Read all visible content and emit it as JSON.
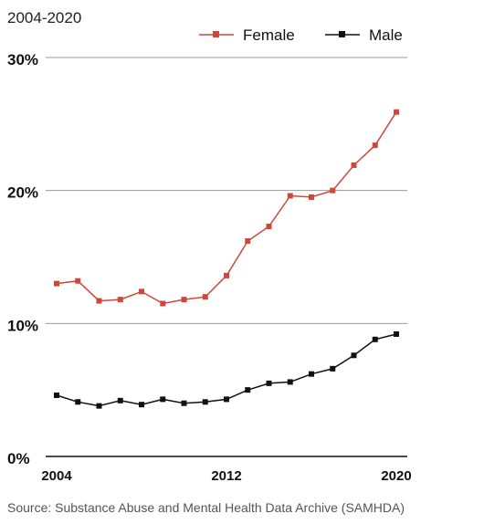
{
  "subtitle": "2004-2020",
  "source": "Source: Substance Abuse and Mental Health Data Archive (SAMHDA)",
  "colors": {
    "female": "#d0463b",
    "male": "#111111"
  },
  "chart_data": {
    "type": "line",
    "title": "",
    "subtitle": "2004-2020",
    "xlabel": "",
    "ylabel": "",
    "x": [
      2004,
      2005,
      2006,
      2007,
      2008,
      2009,
      2010,
      2011,
      2012,
      2013,
      2014,
      2015,
      2016,
      2017,
      2018,
      2019,
      2020
    ],
    "x_ticks": [
      2004,
      2012,
      2020
    ],
    "x_tick_labels": [
      "2004",
      "2012",
      "2020"
    ],
    "xlim": [
      2004,
      2020
    ],
    "ylim": [
      0,
      30
    ],
    "y_ticks": [
      0,
      10,
      20,
      30
    ],
    "y_tick_labels": [
      "0%",
      "10%",
      "20%",
      "30%"
    ],
    "grid": true,
    "legend": "top-right",
    "series": [
      {
        "name": "Female",
        "color": "#d0463b",
        "marker": "square",
        "values": [
          13.0,
          13.2,
          11.7,
          11.8,
          12.4,
          11.5,
          11.8,
          12.0,
          13.6,
          16.2,
          17.3,
          19.6,
          19.5,
          20.0,
          21.9,
          23.4,
          25.9
        ]
      },
      {
        "name": "Male",
        "color": "#111111",
        "marker": "square",
        "values": [
          4.6,
          4.1,
          3.8,
          4.2,
          3.9,
          4.3,
          4.0,
          4.1,
          4.3,
          5.0,
          5.5,
          5.6,
          6.2,
          6.6,
          7.6,
          8.8,
          9.2
        ]
      }
    ]
  }
}
